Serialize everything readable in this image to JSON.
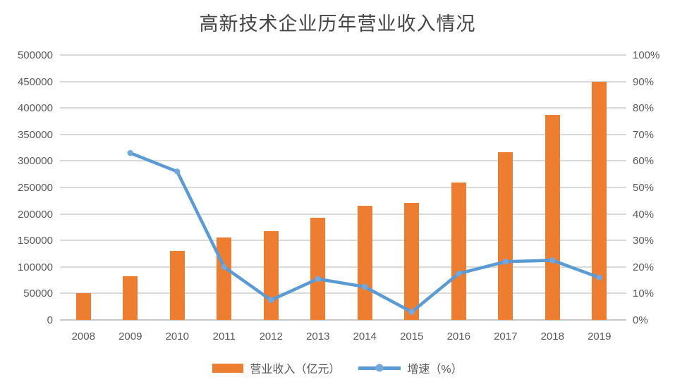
{
  "chart_data": {
    "type": "combo-bar-line",
    "title": "高新技术企业历年营业收入情况",
    "categories": [
      "2008",
      "2009",
      "2010",
      "2011",
      "2012",
      "2013",
      "2014",
      "2015",
      "2016",
      "2017",
      "2018",
      "2019"
    ],
    "series": [
      {
        "name": "营业收入（亿元）",
        "type": "bar",
        "axis": "left",
        "color": "#ED7D31",
        "values": [
          51000,
          83000,
          130000,
          155000,
          167000,
          193000,
          215000,
          221000,
          259000,
          316000,
          387000,
          449000
        ]
      },
      {
        "name": "增速（%）",
        "type": "line",
        "axis": "right",
        "color": "#5B9BD5",
        "marker_color": "#74A7DC",
        "values": [
          null,
          63,
          56,
          20,
          7.5,
          15.5,
          12.5,
          3,
          17.5,
          22,
          22.5,
          16
        ]
      }
    ],
    "left_axis": {
      "min": 0,
      "max": 500000,
      "step": 50000,
      "ticks": [
        "500000",
        "450000",
        "400000",
        "350000",
        "300000",
        "250000",
        "200000",
        "150000",
        "100000",
        "50000",
        "0"
      ]
    },
    "right_axis": {
      "min": 0,
      "max": 100,
      "step": 10,
      "ticks": [
        "100%",
        "90%",
        "80%",
        "70%",
        "60%",
        "50%",
        "40%",
        "30%",
        "20%",
        "10%",
        "0%"
      ]
    },
    "grid": true,
    "legend_position": "bottom",
    "colors": {
      "grid": "#D9D9D9",
      "axis_line": "#C9C9C9",
      "tick_text": "#595959",
      "title_text": "#454545",
      "background": "#FFFFFF"
    }
  }
}
